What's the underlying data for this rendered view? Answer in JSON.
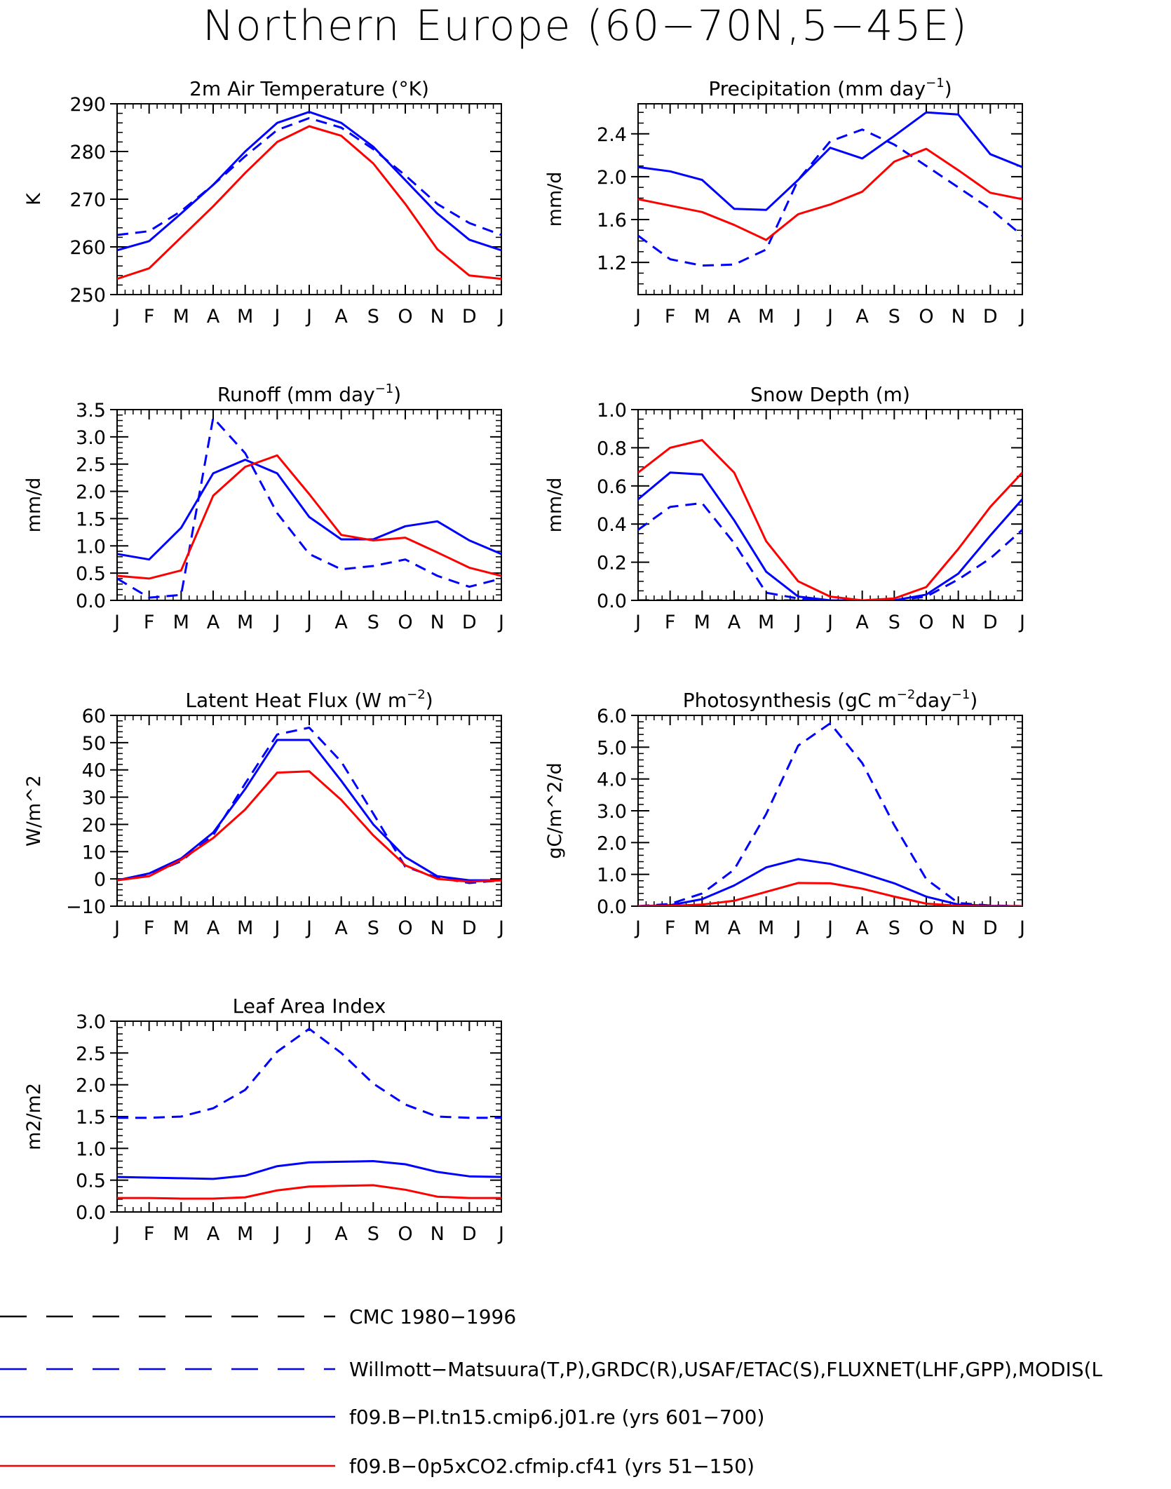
{
  "page_title": "Northern Europe (60−70N,5−45E)",
  "colors": {
    "obs_cmc": "#000000",
    "obs": "#0000ff",
    "model_pi": "#0000ff",
    "model_05x": "#ff0000"
  },
  "legend": [
    {
      "label": "CMC 1980−1996",
      "color": "#000000",
      "dashed": true
    },
    {
      "label": "Willmott−Matsuura(T,P),GRDC(R),USAF/ETAC(S),FLUXNET(LHF,GPP),MODIS(L",
      "color": "#0000ff",
      "dashed": true
    },
    {
      "label": "f09.B−PI.tn15.cmip6.j01.re (yrs 601−700)",
      "color": "#0000ff",
      "dashed": false
    },
    {
      "label": "f09.B−0p5xCO2.cfmip.cf41 (yrs 51−150)",
      "color": "#ff0000",
      "dashed": false
    }
  ],
  "chart_data": [
    {
      "type": "line",
      "title": "2m Air Temperature (°K)",
      "ylabel": "K",
      "x": [
        "J",
        "F",
        "M",
        "A",
        "M",
        "J",
        "J",
        "A",
        "S",
        "O",
        "N",
        "D",
        "J"
      ],
      "ylim": [
        250,
        290
      ],
      "yticks": [
        250,
        260,
        270,
        280,
        290
      ],
      "yminor": 2,
      "series": [
        {
          "style": "dashed",
          "color": "#0000ff",
          "values": [
            262.5,
            263.3,
            267.5,
            273.0,
            279.0,
            284.5,
            287.0,
            285.0,
            280.5,
            275.0,
            269.0,
            265.0,
            262.5
          ]
        },
        {
          "style": "solid",
          "color": "#0000ff",
          "values": [
            259.3,
            261.2,
            267.0,
            273.0,
            280.0,
            286.0,
            288.3,
            286.0,
            281.0,
            274.0,
            267.0,
            261.5,
            259.3
          ]
        },
        {
          "style": "solid",
          "color": "#ff0000",
          "values": [
            253.3,
            255.5,
            262.0,
            268.5,
            275.5,
            282.0,
            285.3,
            283.3,
            277.5,
            269.0,
            259.5,
            254.0,
            253.3
          ]
        }
      ]
    },
    {
      "type": "line",
      "title": "Precipitation (mm day",
      "title_sup": "−1",
      "title_tail": ")",
      "ylabel": "mm/d",
      "x": [
        "J",
        "F",
        "M",
        "A",
        "M",
        "J",
        "J",
        "A",
        "S",
        "O",
        "N",
        "D",
        "J"
      ],
      "ylim": [
        0.9,
        2.68
      ],
      "yticks": [
        1.2,
        1.6,
        2.0,
        2.4
      ],
      "ytick_labels": [
        "1.2",
        "1.6",
        "2.0",
        "2.4"
      ],
      "yminor": 0.1,
      "series": [
        {
          "style": "dashed",
          "color": "#0000ff",
          "values": [
            1.45,
            1.23,
            1.17,
            1.18,
            1.32,
            1.97,
            2.33,
            2.44,
            2.3,
            2.1,
            1.9,
            1.7,
            1.45
          ]
        },
        {
          "style": "solid",
          "color": "#0000ff",
          "values": [
            2.09,
            2.05,
            1.97,
            1.7,
            1.69,
            1.97,
            2.27,
            2.17,
            2.38,
            2.6,
            2.58,
            2.21,
            2.09
          ]
        },
        {
          "style": "solid",
          "color": "#ff0000",
          "values": [
            1.79,
            1.73,
            1.67,
            1.55,
            1.41,
            1.65,
            1.74,
            1.86,
            2.14,
            2.26,
            2.06,
            1.85,
            1.79
          ]
        }
      ]
    },
    {
      "type": "line",
      "title": "Runoff (mm day",
      "title_sup": "−1",
      "title_tail": ")",
      "ylabel": "mm/d",
      "x": [
        "J",
        "F",
        "M",
        "A",
        "M",
        "J",
        "J",
        "A",
        "S",
        "O",
        "N",
        "D",
        "J"
      ],
      "ylim": [
        0,
        3.5
      ],
      "yticks": [
        0,
        0.5,
        1.0,
        1.5,
        2.0,
        2.5,
        3.0,
        3.5
      ],
      "ytick_labels": [
        "0.0",
        "0.5",
        "1.0",
        "1.5",
        "2.0",
        "2.5",
        "3.0",
        "3.5"
      ],
      "yminor": 0.1,
      "series": [
        {
          "style": "dashed",
          "color": "#0000ff",
          "values": [
            0.4,
            0.05,
            0.1,
            3.35,
            2.7,
            1.6,
            0.85,
            0.57,
            0.63,
            0.75,
            0.45,
            0.25,
            0.4
          ]
        },
        {
          "style": "solid",
          "color": "#0000ff",
          "values": [
            0.85,
            0.75,
            1.33,
            2.33,
            2.58,
            2.33,
            1.53,
            1.12,
            1.12,
            1.36,
            1.45,
            1.1,
            0.85
          ]
        },
        {
          "style": "solid",
          "color": "#ff0000",
          "values": [
            0.45,
            0.4,
            0.55,
            1.92,
            2.45,
            2.66,
            1.95,
            1.2,
            1.1,
            1.15,
            0.88,
            0.6,
            0.45
          ]
        }
      ]
    },
    {
      "type": "line",
      "title": "Snow Depth (m)",
      "ylabel": "mm/d",
      "x": [
        "J",
        "F",
        "M",
        "A",
        "M",
        "J",
        "J",
        "A",
        "S",
        "O",
        "N",
        "D",
        "J"
      ],
      "ylim": [
        0,
        1.0
      ],
      "yticks": [
        0,
        0.2,
        0.4,
        0.6,
        0.8,
        1.0
      ],
      "ytick_labels": [
        "0.0",
        "0.2",
        "0.4",
        "0.6",
        "0.8",
        "1.0"
      ],
      "yminor": 0.05,
      "series": [
        {
          "style": "dashed",
          "color": "#000000",
          "values": [
            0,
            0,
            0,
            0,
            0,
            0,
            0,
            0,
            0,
            0,
            0,
            0,
            0
          ]
        },
        {
          "style": "dashed",
          "color": "#0000ff",
          "values": [
            0.37,
            0.49,
            0.51,
            0.3,
            0.04,
            0.01,
            0.0,
            0.0,
            0.0,
            0.02,
            0.11,
            0.22,
            0.37
          ]
        },
        {
          "style": "solid",
          "color": "#0000ff",
          "values": [
            0.53,
            0.67,
            0.66,
            0.42,
            0.15,
            0.02,
            0.0,
            0.0,
            0.0,
            0.03,
            0.14,
            0.34,
            0.53
          ]
        },
        {
          "style": "solid",
          "color": "#ff0000",
          "values": [
            0.67,
            0.8,
            0.84,
            0.67,
            0.31,
            0.1,
            0.02,
            0.0,
            0.01,
            0.07,
            0.27,
            0.49,
            0.67
          ]
        }
      ]
    },
    {
      "type": "line",
      "title": "Latent Heat Flux (W m",
      "title_sup": "−2",
      "title_tail": ")",
      "ylabel": "W/m^2",
      "x": [
        "J",
        "F",
        "M",
        "A",
        "M",
        "J",
        "J",
        "A",
        "S",
        "O",
        "N",
        "D",
        "J"
      ],
      "ylim": [
        -10,
        60
      ],
      "yticks": [
        -10,
        0,
        10,
        20,
        30,
        40,
        50,
        60
      ],
      "ytick_labels": [
        "−10",
        "0",
        "10",
        "20",
        "30",
        "40",
        "50",
        "60"
      ],
      "yminor": 2,
      "series": [
        {
          "style": "dashed",
          "color": "#0000ff",
          "values": [
            -0.5,
            1.5,
            6.5,
            16.0,
            35.0,
            53.0,
            55.5,
            43.0,
            24.0,
            4.5,
            0.5,
            -1.5,
            -0.5
          ]
        },
        {
          "style": "solid",
          "color": "#0000ff",
          "values": [
            -0.5,
            2.0,
            7.5,
            17.0,
            33.0,
            51.0,
            51.0,
            36.0,
            20.0,
            8.0,
            1.0,
            -0.5,
            -0.5
          ]
        },
        {
          "style": "solid",
          "color": "#ff0000",
          "values": [
            -0.5,
            1.0,
            7.0,
            15.0,
            25.5,
            39.0,
            39.5,
            29.0,
            16.0,
            5.0,
            0.0,
            -1.0,
            -0.5
          ]
        }
      ]
    },
    {
      "type": "line",
      "title": "Photosynthesis (gC m",
      "title_sup": "−2",
      "title_mid": "day",
      "title_sup2": "−1",
      "title_tail": ")",
      "ylabel": "gC/m^2/d",
      "x": [
        "J",
        "F",
        "M",
        "A",
        "M",
        "J",
        "J",
        "A",
        "S",
        "O",
        "N",
        "D",
        "J"
      ],
      "ylim": [
        0,
        6.0
      ],
      "yticks": [
        0,
        1,
        2,
        3,
        4,
        5,
        6
      ],
      "ytick_labels": [
        "0.0",
        "1.0",
        "2.0",
        "3.0",
        "4.0",
        "5.0",
        "6.0"
      ],
      "yminor": 0.2,
      "series": [
        {
          "style": "dashed",
          "color": "#0000ff",
          "values": [
            0.0,
            0.07,
            0.4,
            1.15,
            2.9,
            5.05,
            5.75,
            4.5,
            2.55,
            0.85,
            0.1,
            0.02,
            0.0
          ]
        },
        {
          "style": "solid",
          "color": "#0000ff",
          "values": [
            0.0,
            0.03,
            0.22,
            0.65,
            1.22,
            1.48,
            1.33,
            1.04,
            0.72,
            0.3,
            0.05,
            0.01,
            0.0
          ]
        },
        {
          "style": "solid",
          "color": "#ff0000",
          "values": [
            0.0,
            0.01,
            0.05,
            0.17,
            0.45,
            0.73,
            0.72,
            0.55,
            0.3,
            0.08,
            0.01,
            0.0,
            0.0
          ]
        }
      ]
    },
    {
      "type": "line",
      "title": "Leaf Area Index",
      "ylabel": "m2/m2",
      "x": [
        "J",
        "F",
        "M",
        "A",
        "M",
        "J",
        "J",
        "A",
        "S",
        "O",
        "N",
        "D",
        "J"
      ],
      "ylim": [
        0,
        3.0
      ],
      "yticks": [
        0,
        0.5,
        1.0,
        1.5,
        2.0,
        2.5,
        3.0
      ],
      "ytick_labels": [
        "0.0",
        "0.5",
        "1.0",
        "1.5",
        "2.0",
        "2.5",
        "3.0"
      ],
      "yminor": 0.1,
      "series": [
        {
          "style": "dashed",
          "color": "#0000ff",
          "values": [
            1.48,
            1.48,
            1.5,
            1.63,
            1.92,
            2.52,
            2.88,
            2.5,
            2.02,
            1.69,
            1.5,
            1.48,
            1.48
          ]
        },
        {
          "style": "solid",
          "color": "#0000ff",
          "values": [
            0.55,
            0.54,
            0.53,
            0.52,
            0.57,
            0.72,
            0.78,
            0.79,
            0.8,
            0.75,
            0.63,
            0.56,
            0.55
          ]
        },
        {
          "style": "solid",
          "color": "#ff0000",
          "values": [
            0.22,
            0.22,
            0.21,
            0.21,
            0.23,
            0.34,
            0.4,
            0.41,
            0.42,
            0.35,
            0.24,
            0.22,
            0.22
          ]
        }
      ]
    }
  ]
}
